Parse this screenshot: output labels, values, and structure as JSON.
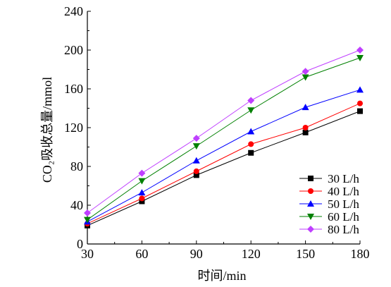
{
  "chart_data": {
    "type": "line",
    "xlabel": "时间/min",
    "ylabel": "CO₂吸收总量/mmol",
    "xlim": [
      30,
      180
    ],
    "ylim": [
      0,
      240
    ],
    "xticks": [
      30,
      60,
      90,
      120,
      150,
      180
    ],
    "yticks": [
      0,
      40,
      80,
      120,
      160,
      200,
      240
    ],
    "grid": false,
    "legend_position": "bottom-right",
    "x": [
      30,
      60,
      90,
      120,
      150,
      180
    ],
    "series": [
      {
        "name": "30 L/h",
        "color": "#000000",
        "marker": "square",
        "values": [
          19,
          44,
          71,
          94,
          115,
          137
        ]
      },
      {
        "name": "40 L/h",
        "color": "#ff0000",
        "marker": "circle",
        "values": [
          21,
          47,
          75,
          103,
          120,
          145
        ]
      },
      {
        "name": "50 L/h",
        "color": "#0000ff",
        "marker": "triangle-up",
        "values": [
          23,
          53,
          86,
          116,
          141,
          159
        ]
      },
      {
        "name": "60 L/h",
        "color": "#008000",
        "marker": "triangle-down",
        "values": [
          25,
          65,
          101,
          138,
          172,
          192
        ]
      },
      {
        "name": "80 L/h",
        "color": "#bf3fff",
        "marker": "diamond",
        "values": [
          32,
          73,
          109,
          148,
          178,
          200
        ]
      }
    ]
  }
}
